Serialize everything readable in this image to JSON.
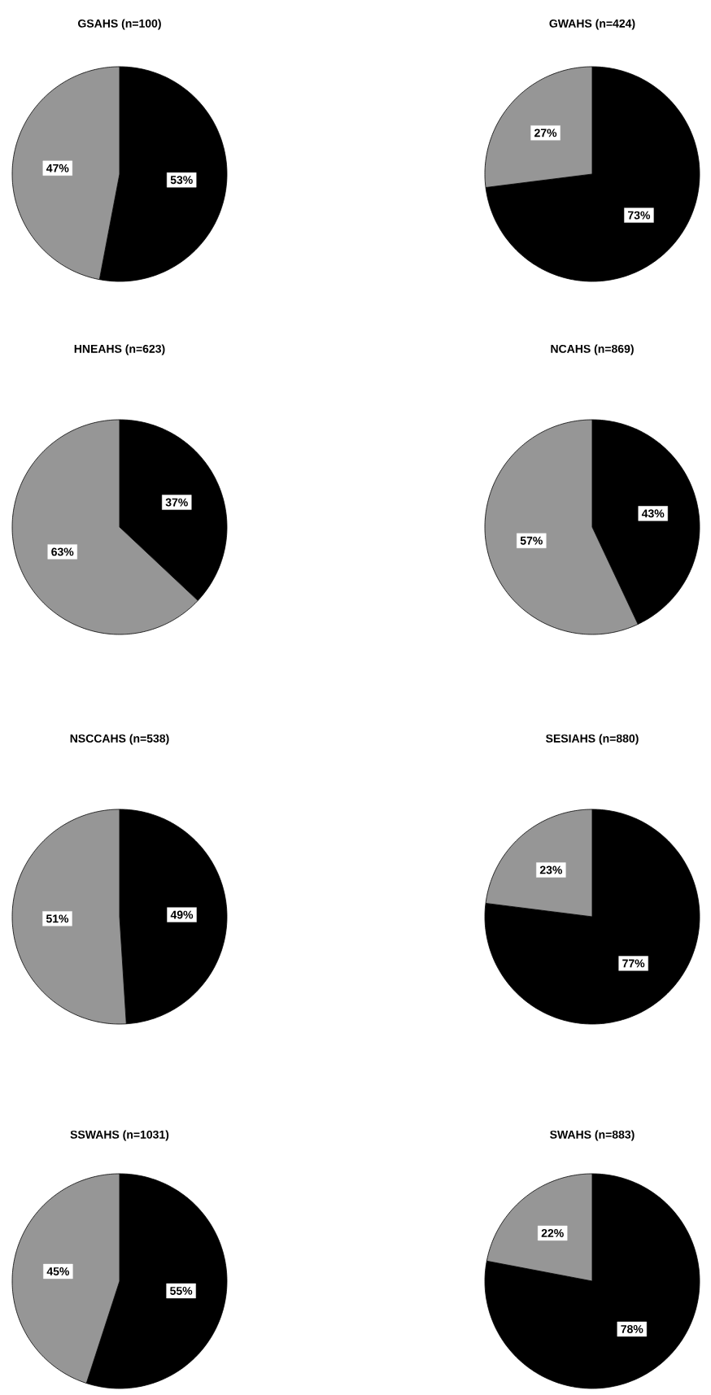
{
  "chart_data": [
    {
      "type": "pie",
      "title": "GSAHS (n=100)",
      "categories": [
        null,
        null
      ],
      "values": [
        53,
        47
      ],
      "colors": [
        "#000000",
        "#969696"
      ],
      "value_labels": [
        "53%",
        "47%"
      ]
    },
    {
      "type": "pie",
      "title": "GWAHS (n=424)",
      "categories": [
        null,
        null
      ],
      "values": [
        73,
        27
      ],
      "colors": [
        "#000000",
        "#969696"
      ],
      "value_labels": [
        "73%",
        "27%"
      ]
    },
    {
      "type": "pie",
      "title": "HNEAHS (n=623)",
      "categories": [
        null,
        null
      ],
      "values": [
        37,
        63
      ],
      "colors": [
        "#000000",
        "#969696"
      ],
      "value_labels": [
        "37%",
        "63%"
      ]
    },
    {
      "type": "pie",
      "title": "NCAHS (n=869)",
      "categories": [
        null,
        null
      ],
      "values": [
        43,
        57
      ],
      "colors": [
        "#000000",
        "#969696"
      ],
      "value_labels": [
        "43%",
        "57%"
      ]
    },
    {
      "type": "pie",
      "title": "NSCCAHS (n=538)",
      "categories": [
        null,
        null
      ],
      "values": [
        49,
        51
      ],
      "colors": [
        "#000000",
        "#969696"
      ],
      "value_labels": [
        "49%",
        "51%"
      ]
    },
    {
      "type": "pie",
      "title": "SESIAHS (n=880)",
      "categories": [
        null,
        null
      ],
      "values": [
        77,
        23
      ],
      "colors": [
        "#000000",
        "#969696"
      ],
      "value_labels": [
        "77%",
        "23%"
      ]
    },
    {
      "type": "pie",
      "title": "SSWAHS (n=1031)",
      "categories": [
        null,
        null
      ],
      "values": [
        55,
        45
      ],
      "colors": [
        "#000000",
        "#969696"
      ],
      "value_labels": [
        "55%",
        "45%"
      ]
    },
    {
      "type": "pie",
      "title": "SWAHS (n=883)",
      "categories": [
        null,
        null
      ],
      "values": [
        78,
        22
      ],
      "colors": [
        "#000000",
        "#969696"
      ],
      "value_labels": [
        "78%",
        "22%"
      ]
    }
  ]
}
